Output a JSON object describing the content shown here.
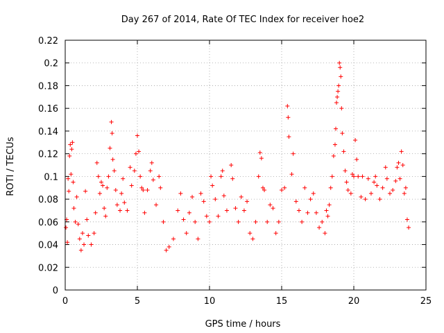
{
  "chart_data": {
    "type": "scatter",
    "title": "Day 267 of 2014, Rate Of TEC Index for receiver hoe2",
    "xlabel": "GPS time / hours",
    "ylabel": "ROTI / TECUs",
    "xlim": [
      0,
      25
    ],
    "ylim": [
      0,
      0.22
    ],
    "xticks": [
      "0",
      "5",
      "10",
      "15",
      "20",
      "25"
    ],
    "yticks": [
      "0",
      "0.02",
      "0.04",
      "0.06",
      "0.08",
      "0.1",
      "0.12",
      "0.14",
      "0.16",
      "0.18",
      "0.2",
      "0.22"
    ],
    "grid": true,
    "marker": "plus",
    "color": "#ff0000",
    "series": [
      {
        "name": "",
        "points": [
          [
            0.05,
            0.055
          ],
          [
            0.1,
            0.062
          ],
          [
            0.15,
            0.042
          ],
          [
            0.2,
            0.098
          ],
          [
            0.25,
            0.087
          ],
          [
            0.3,
            0.118
          ],
          [
            0.35,
            0.128
          ],
          [
            0.4,
            0.102
          ],
          [
            0.45,
            0.124
          ],
          [
            0.5,
            0.13
          ],
          [
            0.55,
            0.095
          ],
          [
            0.6,
            0.072
          ],
          [
            0.7,
            0.06
          ],
          [
            0.8,
            0.082
          ],
          [
            0.9,
            0.058
          ],
          [
            1.0,
            0.045
          ],
          [
            1.1,
            0.035
          ],
          [
            1.2,
            0.05
          ],
          [
            1.3,
            0.04
          ],
          [
            1.4,
            0.087
          ],
          [
            1.5,
            0.062
          ],
          [
            1.6,
            0.048
          ],
          [
            1.8,
            0.04
          ],
          [
            2.0,
            0.05
          ],
          [
            2.1,
            0.068
          ],
          [
            2.2,
            0.112
          ],
          [
            2.3,
            0.1
          ],
          [
            2.4,
            0.085
          ],
          [
            2.5,
            0.095
          ],
          [
            2.6,
            0.092
          ],
          [
            2.7,
            0.072
          ],
          [
            2.8,
            0.065
          ],
          [
            2.9,
            0.09
          ],
          [
            3.0,
            0.1
          ],
          [
            3.1,
            0.125
          ],
          [
            3.2,
            0.148
          ],
          [
            3.25,
            0.138
          ],
          [
            3.3,
            0.115
          ],
          [
            3.4,
            0.105
          ],
          [
            3.5,
            0.088
          ],
          [
            3.6,
            0.075
          ],
          [
            3.8,
            0.07
          ],
          [
            3.9,
            0.085
          ],
          [
            4.0,
            0.098
          ],
          [
            4.1,
            0.077
          ],
          [
            4.3,
            0.07
          ],
          [
            4.5,
            0.108
          ],
          [
            4.6,
            0.092
          ],
          [
            4.8,
            0.105
          ],
          [
            4.9,
            0.12
          ],
          [
            5.0,
            0.136
          ],
          [
            5.1,
            0.122
          ],
          [
            5.2,
            0.1
          ],
          [
            5.3,
            0.09
          ],
          [
            5.4,
            0.088
          ],
          [
            5.5,
            0.068
          ],
          [
            5.7,
            0.088
          ],
          [
            5.9,
            0.105
          ],
          [
            6.0,
            0.112
          ],
          [
            6.1,
            0.097
          ],
          [
            6.3,
            0.075
          ],
          [
            6.5,
            0.1
          ],
          [
            6.6,
            0.09
          ],
          [
            6.8,
            0.06
          ],
          [
            7.0,
            0.035
          ],
          [
            7.2,
            0.038
          ],
          [
            7.5,
            0.045
          ],
          [
            7.8,
            0.07
          ],
          [
            8.0,
            0.085
          ],
          [
            8.2,
            0.062
          ],
          [
            8.4,
            0.05
          ],
          [
            8.6,
            0.068
          ],
          [
            8.8,
            0.082
          ],
          [
            9.0,
            0.06
          ],
          [
            9.2,
            0.045
          ],
          [
            9.4,
            0.085
          ],
          [
            9.6,
            0.078
          ],
          [
            9.8,
            0.065
          ],
          [
            10.0,
            0.06
          ],
          [
            10.1,
            0.1
          ],
          [
            10.2,
            0.092
          ],
          [
            10.4,
            0.08
          ],
          [
            10.6,
            0.065
          ],
          [
            10.8,
            0.1
          ],
          [
            10.9,
            0.105
          ],
          [
            11.0,
            0.083
          ],
          [
            11.2,
            0.07
          ],
          [
            11.5,
            0.11
          ],
          [
            11.6,
            0.098
          ],
          [
            11.8,
            0.072
          ],
          [
            12.0,
            0.06
          ],
          [
            12.2,
            0.082
          ],
          [
            12.4,
            0.07
          ],
          [
            12.6,
            0.078
          ],
          [
            12.8,
            0.05
          ],
          [
            13.0,
            0.045
          ],
          [
            13.2,
            0.06
          ],
          [
            13.4,
            0.1
          ],
          [
            13.5,
            0.121
          ],
          [
            13.6,
            0.116
          ],
          [
            13.7,
            0.09
          ],
          [
            13.8,
            0.088
          ],
          [
            14.0,
            0.06
          ],
          [
            14.2,
            0.075
          ],
          [
            14.4,
            0.072
          ],
          [
            14.6,
            0.05
          ],
          [
            14.8,
            0.06
          ],
          [
            15.0,
            0.088
          ],
          [
            15.2,
            0.09
          ],
          [
            15.4,
            0.162
          ],
          [
            15.45,
            0.152
          ],
          [
            15.5,
            0.135
          ],
          [
            15.7,
            0.102
          ],
          [
            15.8,
            0.12
          ],
          [
            16.0,
            0.078
          ],
          [
            16.2,
            0.07
          ],
          [
            16.4,
            0.06
          ],
          [
            16.6,
            0.09
          ],
          [
            16.8,
            0.068
          ],
          [
            17.0,
            0.08
          ],
          [
            17.2,
            0.085
          ],
          [
            17.4,
            0.068
          ],
          [
            17.6,
            0.055
          ],
          [
            17.8,
            0.06
          ],
          [
            18.0,
            0.05
          ],
          [
            18.1,
            0.07
          ],
          [
            18.2,
            0.065
          ],
          [
            18.3,
            0.075
          ],
          [
            18.4,
            0.09
          ],
          [
            18.5,
            0.1
          ],
          [
            18.6,
            0.118
          ],
          [
            18.7,
            0.128
          ],
          [
            18.75,
            0.142
          ],
          [
            18.8,
            0.165
          ],
          [
            18.85,
            0.17
          ],
          [
            18.9,
            0.175
          ],
          [
            18.95,
            0.18
          ],
          [
            19.0,
            0.2
          ],
          [
            19.05,
            0.196
          ],
          [
            19.1,
            0.188
          ],
          [
            19.15,
            0.16
          ],
          [
            19.2,
            0.138
          ],
          [
            19.3,
            0.122
          ],
          [
            19.4,
            0.105
          ],
          [
            19.5,
            0.095
          ],
          [
            19.6,
            0.088
          ],
          [
            19.8,
            0.085
          ],
          [
            19.9,
            0.102
          ],
          [
            20.0,
            0.1
          ],
          [
            20.1,
            0.132
          ],
          [
            20.2,
            0.115
          ],
          [
            20.3,
            0.1
          ],
          [
            20.5,
            0.082
          ],
          [
            20.6,
            0.1
          ],
          [
            20.8,
            0.08
          ],
          [
            21.0,
            0.098
          ],
          [
            21.2,
            0.085
          ],
          [
            21.4,
            0.095
          ],
          [
            21.5,
            0.1
          ],
          [
            21.6,
            0.092
          ],
          [
            21.8,
            0.08
          ],
          [
            22.0,
            0.09
          ],
          [
            22.2,
            0.108
          ],
          [
            22.3,
            0.098
          ],
          [
            22.5,
            0.085
          ],
          [
            22.7,
            0.088
          ],
          [
            22.9,
            0.096
          ],
          [
            23.0,
            0.108
          ],
          [
            23.1,
            0.112
          ],
          [
            23.2,
            0.098
          ],
          [
            23.3,
            0.122
          ],
          [
            23.4,
            0.11
          ],
          [
            23.5,
            0.085
          ],
          [
            23.6,
            0.09
          ],
          [
            23.7,
            0.062
          ],
          [
            23.8,
            0.055
          ]
        ]
      }
    ]
  }
}
